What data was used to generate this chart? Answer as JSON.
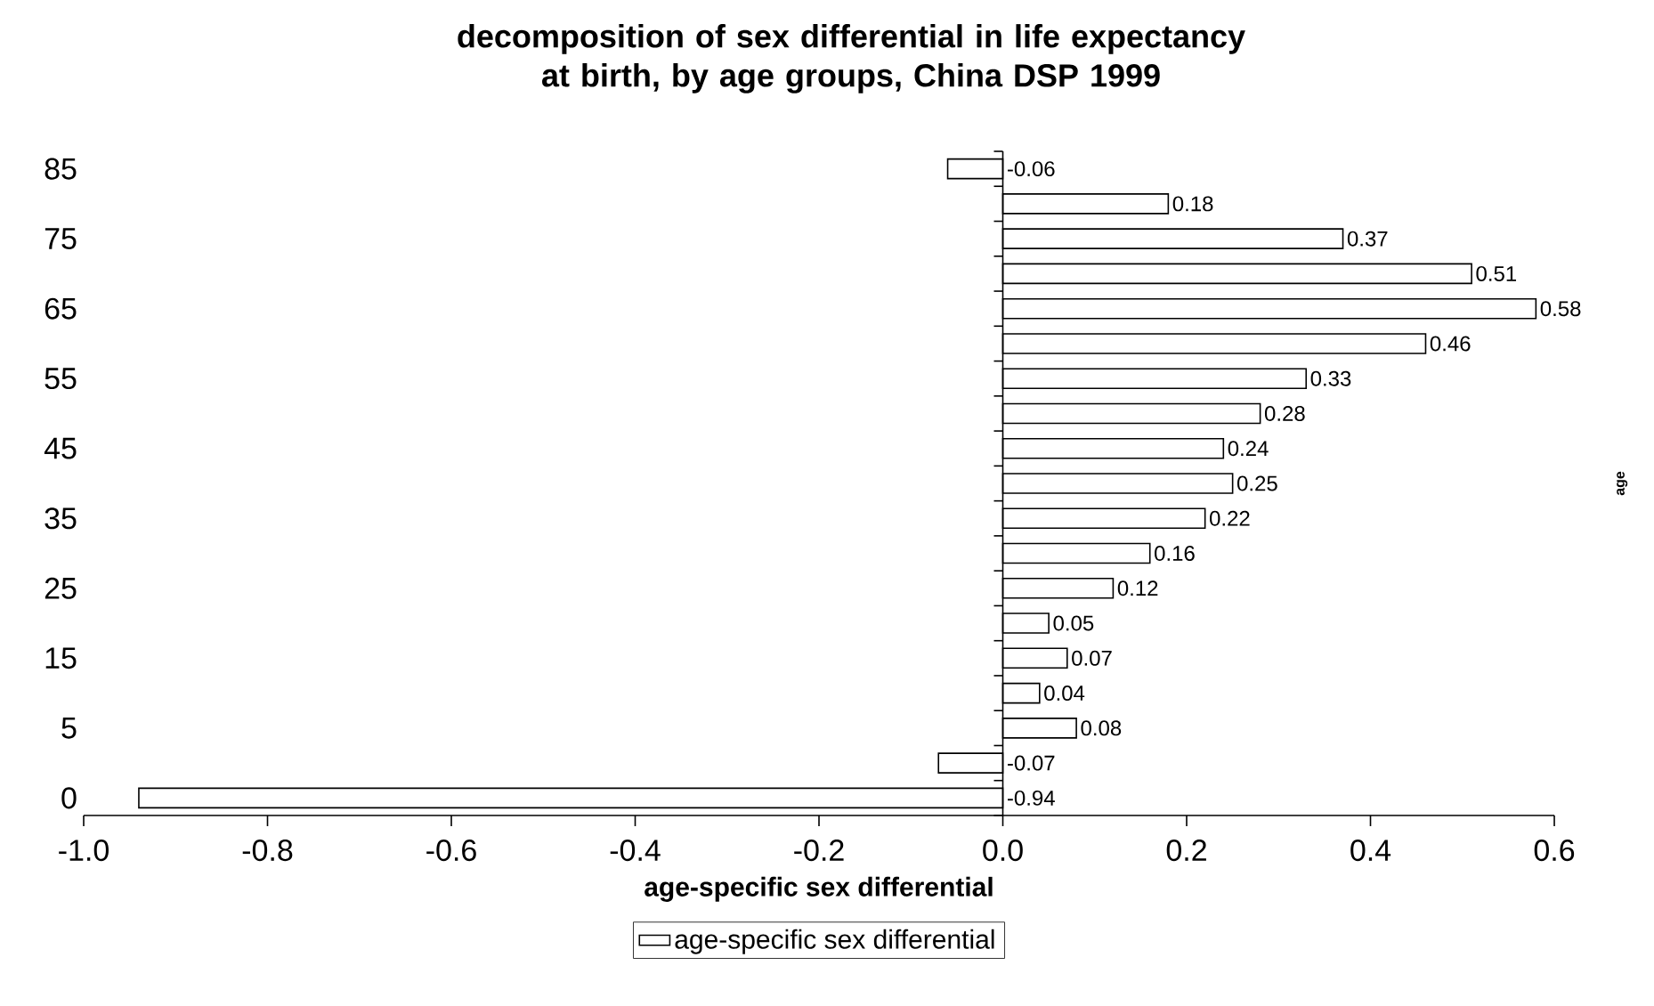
{
  "chart_data": {
    "type": "bar",
    "orientation": "horizontal",
    "title": "decomposition of sex differential in life expectancy at birth, by age groups, China DSP 1999",
    "xlabel": "age-specific sex differential",
    "ylabel": "age",
    "categories": [
      "85",
      null,
      "75",
      null,
      "65",
      null,
      "55",
      null,
      "45",
      null,
      "35",
      null,
      "25",
      null,
      "15",
      null,
      "5",
      null,
      "0"
    ],
    "series": [
      {
        "name": "age-specific sex differential",
        "color": "#ffffff",
        "values": [
          -0.06,
          0.18,
          0.37,
          0.51,
          0.58,
          0.46,
          0.33,
          0.28,
          0.24,
          0.25,
          0.22,
          0.16,
          0.12,
          0.05,
          0.07,
          0.04,
          0.08,
          -0.07,
          -0.94
        ]
      }
    ],
    "xlim": [
      -1.0,
      0.6
    ],
    "xticks": [
      {
        "value": -1.0,
        "label": "-1.0"
      },
      {
        "value": -0.8,
        "label": "-0.8"
      },
      {
        "value": -0.6,
        "label": "-0.6"
      },
      {
        "value": -0.4,
        "label": "-0.4"
      },
      {
        "value": -0.2,
        "label": "-0.2"
      },
      {
        "value": 0,
        "label": "0.0"
      },
      {
        "value": 0.2,
        "label": "0.2"
      },
      {
        "value": 0.4,
        "label": "0.4"
      },
      {
        "value": 0.6,
        "label": "0.6"
      }
    ],
    "ref_lines": [
      {
        "axis": "x",
        "value": 0
      }
    ],
    "data_labels": true,
    "grid": false,
    "legend": "bottom"
  }
}
